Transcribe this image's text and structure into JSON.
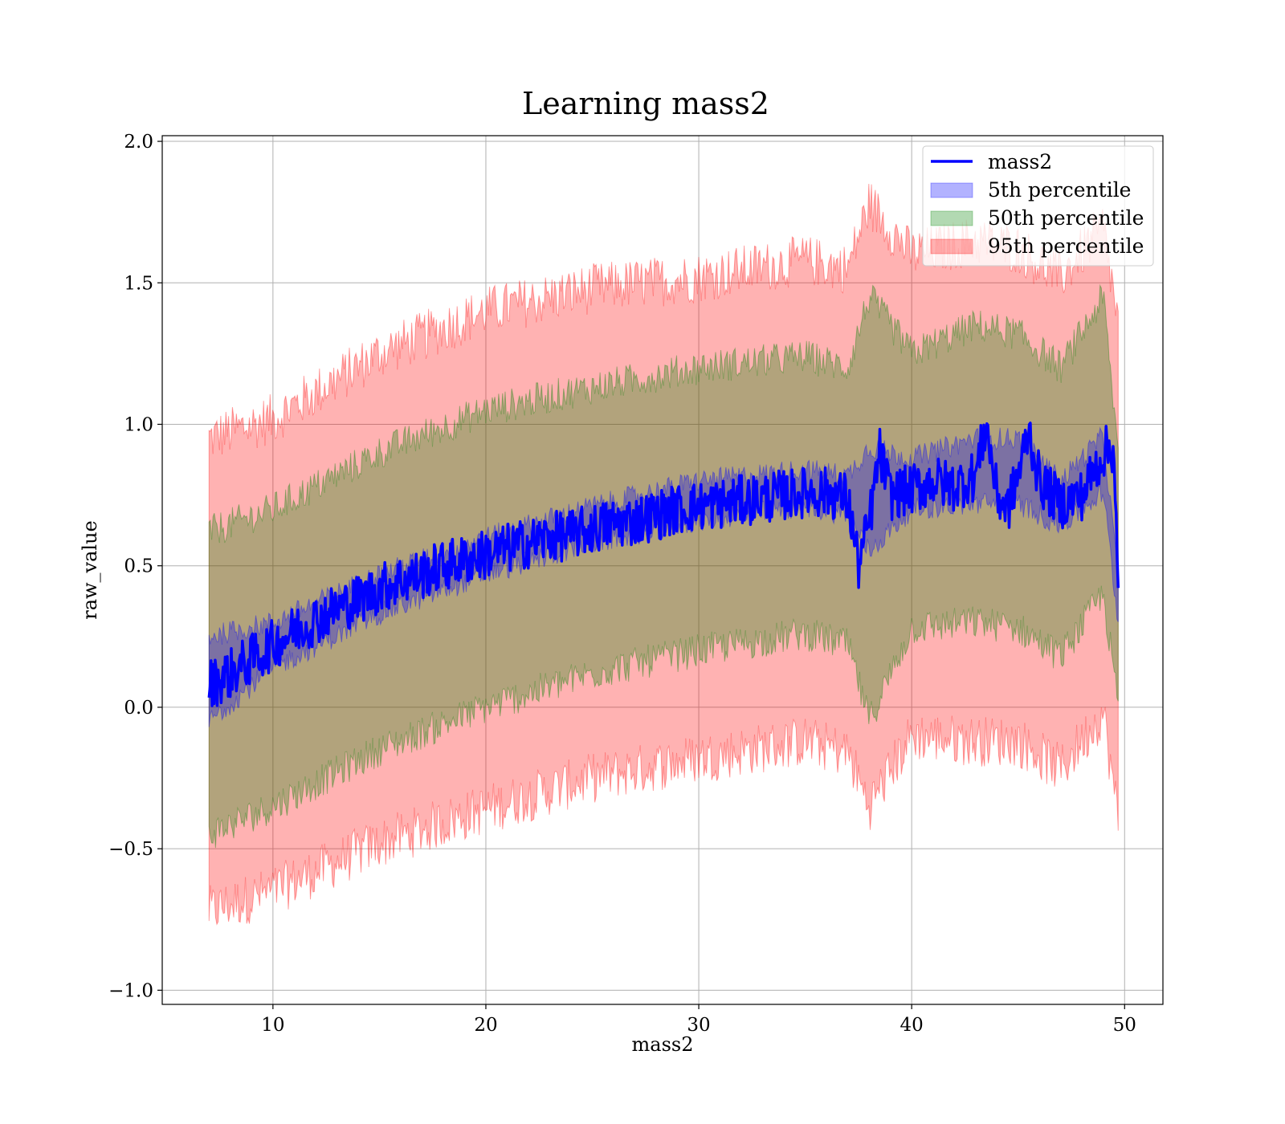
{
  "chart_data": {
    "type": "line",
    "title": "Learning mass2",
    "xlabel": "mass2",
    "ylabel": "raw_value",
    "xlim": [
      4.8,
      51.8
    ],
    "ylim": [
      -1.05,
      2.02
    ],
    "x_ticks": [
      10,
      20,
      30,
      40,
      50
    ],
    "y_ticks": [
      -1.0,
      -0.5,
      0.0,
      0.5,
      1.0,
      1.5,
      2.0
    ],
    "x_tick_labels": [
      "10",
      "20",
      "30",
      "40",
      "50"
    ],
    "y_tick_labels": [
      "−1.0",
      "−0.5",
      "0.0",
      "0.5",
      "1.0",
      "1.5",
      "2.0"
    ],
    "grid": true,
    "legend_position": "top-right",
    "legend": [
      {
        "label": "mass2",
        "kind": "line",
        "color": "#0000ff"
      },
      {
        "label": "5th percentile",
        "kind": "band",
        "color": "#0000ff"
      },
      {
        "label": "50th percentile",
        "kind": "band",
        "color": "#008000"
      },
      {
        "label": "95th percentile",
        "kind": "band",
        "color": "#ff0000"
      }
    ],
    "series": [
      {
        "name": "mass2",
        "role": "line",
        "color": "#0000ff",
        "x": [
          7,
          8,
          9,
          10,
          11,
          12,
          13,
          14,
          15,
          16,
          17,
          18,
          19,
          20,
          21,
          22,
          23,
          24,
          25,
          26,
          27,
          28,
          29,
          30,
          31,
          32,
          33,
          34,
          35,
          36,
          37,
          37.5,
          38,
          38.5,
          39,
          40,
          41,
          42,
          43,
          43.5,
          44,
          44.5,
          45,
          45.5,
          46,
          47,
          48,
          49,
          49.5,
          49.7
        ],
        "y": [
          0.08,
          0.12,
          0.17,
          0.22,
          0.27,
          0.31,
          0.35,
          0.38,
          0.42,
          0.45,
          0.47,
          0.5,
          0.52,
          0.54,
          0.56,
          0.58,
          0.6,
          0.61,
          0.63,
          0.65,
          0.66,
          0.68,
          0.7,
          0.71,
          0.72,
          0.73,
          0.74,
          0.75,
          0.76,
          0.76,
          0.74,
          0.5,
          0.65,
          0.9,
          0.75,
          0.77,
          0.8,
          0.78,
          0.82,
          1.0,
          0.75,
          0.7,
          0.82,
          0.98,
          0.8,
          0.72,
          0.75,
          0.9,
          0.92,
          0.38
        ]
      },
      {
        "name": "5th percentile",
        "role": "band",
        "color": "#0000ff",
        "x": [
          7,
          10,
          15,
          20,
          25,
          30,
          35,
          37,
          38,
          40,
          43,
          45,
          47,
          49,
          49.7
        ],
        "lower": [
          -0.05,
          0.14,
          0.33,
          0.47,
          0.58,
          0.66,
          0.71,
          0.68,
          0.55,
          0.7,
          0.72,
          0.72,
          0.64,
          0.76,
          0.3
        ],
        "upper": [
          0.25,
          0.3,
          0.47,
          0.6,
          0.71,
          0.8,
          0.84,
          0.82,
          0.92,
          0.88,
          0.95,
          0.95,
          0.8,
          0.96,
          0.45
        ]
      },
      {
        "name": "50th percentile",
        "role": "band",
        "color": "#008000",
        "x": [
          7,
          10,
          15,
          20,
          25,
          30,
          35,
          37,
          38,
          40,
          43,
          45,
          47,
          49,
          49.7
        ],
        "lower": [
          -0.45,
          -0.35,
          -0.15,
          0.0,
          0.12,
          0.2,
          0.26,
          0.22,
          -0.05,
          0.28,
          0.3,
          0.28,
          0.18,
          0.4,
          0.0
        ],
        "upper": [
          0.62,
          0.7,
          0.9,
          1.05,
          1.13,
          1.2,
          1.24,
          1.2,
          1.45,
          1.25,
          1.35,
          1.32,
          1.2,
          1.45,
          0.9
        ]
      },
      {
        "name": "95th percentile",
        "role": "band",
        "color": "#ff0000",
        "x": [
          7,
          10,
          15,
          20,
          25,
          30,
          35,
          37,
          38,
          40,
          43,
          45,
          47,
          49,
          49.7
        ],
        "lower": [
          -0.72,
          -0.65,
          -0.48,
          -0.36,
          -0.25,
          -0.18,
          -0.12,
          -0.16,
          -0.35,
          -0.1,
          -0.12,
          -0.12,
          -0.22,
          -0.02,
          -0.4
        ],
        "upper": [
          0.95,
          1.02,
          1.25,
          1.4,
          1.48,
          1.52,
          1.58,
          1.55,
          1.78,
          1.6,
          1.65,
          1.62,
          1.52,
          1.7,
          1.35
        ]
      }
    ]
  }
}
